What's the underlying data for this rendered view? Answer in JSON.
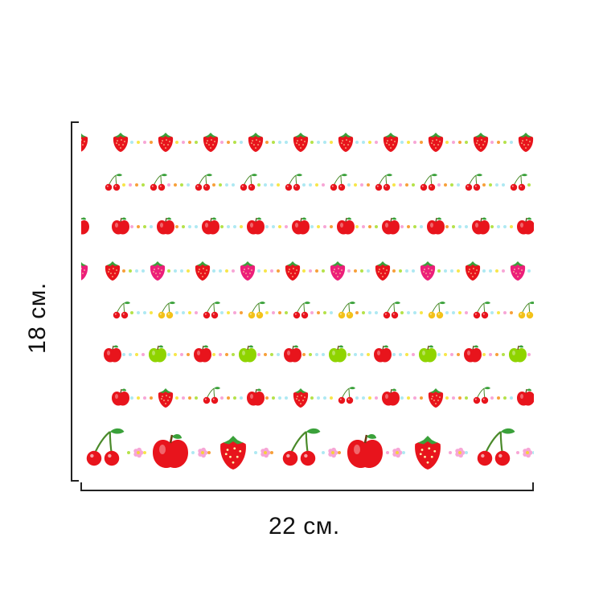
{
  "dimensions": {
    "width_label": "22 см.",
    "height_label": "18 см."
  },
  "pattern": {
    "rows": [
      {
        "motif": "strawberry",
        "count": 10
      },
      {
        "motif": "cherry",
        "count": 10
      },
      {
        "motif": "apple",
        "count": 10
      },
      {
        "motif": "strawberry-alternating-pink",
        "count": 10
      },
      {
        "motif": "cherry-alternating-yellow",
        "count": 10
      },
      {
        "motif": "apple-alternating-green",
        "count": 10
      },
      {
        "motif": "apple-strawberry-cherry-mix",
        "count": 10
      },
      {
        "motif": "large-cherry-apple-strawberry-flower",
        "count": 7
      }
    ],
    "colors": {
      "red": "#e8141c",
      "dark_red": "#b50d12",
      "pink": "#ec1f7a",
      "green": "#8fd400",
      "leaf": "#3aa13a",
      "dot_cyan": "#aee9f2",
      "dot_yellow": "#f7e64a",
      "dot_pink": "#f7a6d6",
      "dot_orange": "#f7a03a",
      "dot_lime": "#b5e24a",
      "flower": "#f7a6d6",
      "flower_center": "#f5d23a",
      "dim_line": "#222222"
    }
  }
}
